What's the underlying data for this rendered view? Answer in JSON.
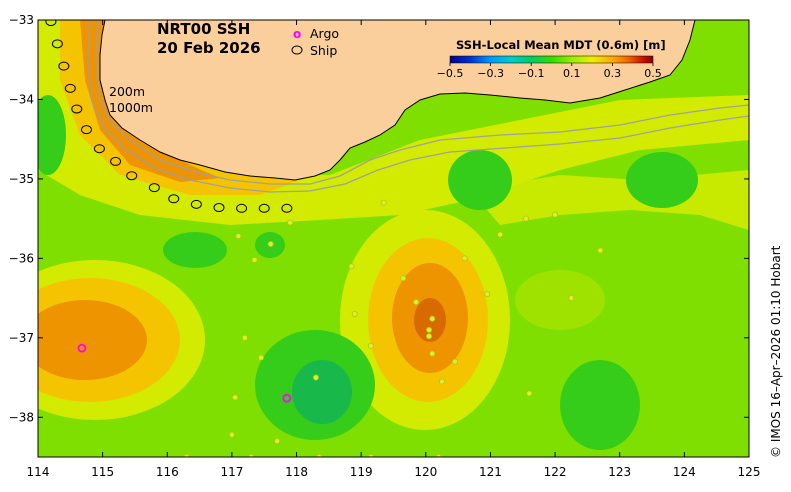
{
  "title": {
    "line1": "NRT00 SSH",
    "line2": "20 Feb 2026"
  },
  "legend": {
    "argo_symbol": "o",
    "argo_label": "Argo",
    "ship_label": "Ship",
    "argo_color": "#ff00ff",
    "ship_color": "#000000"
  },
  "isobaths": {
    "label_200": "200m",
    "label_1000": "1000m"
  },
  "colorbar": {
    "title": "SSH-Local Mean MDT (0.6m) [m]",
    "ticks": [
      "−0.5",
      "−0.3",
      "−0.1",
      "0.1",
      "0.3",
      "0.5"
    ],
    "tick_values": [
      -0.5,
      -0.3,
      -0.1,
      0.1,
      0.3,
      0.5
    ],
    "range": [
      -0.5,
      0.5
    ],
    "colors": [
      "#00008b",
      "#0033cc",
      "#0099ff",
      "#00cccc",
      "#00cc66",
      "#33dd00",
      "#99ee00",
      "#eeee00",
      "#ffaa00",
      "#ee6600",
      "#cc1100",
      "#880000"
    ]
  },
  "axes": {
    "x_ticks": [
      "114",
      "115",
      "116",
      "117",
      "118",
      "119",
      "120",
      "121",
      "122",
      "123",
      "124",
      "125"
    ],
    "x_values": [
      114,
      115,
      116,
      117,
      118,
      119,
      120,
      121,
      122,
      123,
      124,
      125
    ],
    "y_ticks": [
      "−33",
      "−34",
      "−35",
      "−36",
      "−37",
      "−38"
    ],
    "y_values": [
      -33,
      -34,
      -35,
      -36,
      -37,
      -38
    ],
    "lon_range": [
      114,
      125
    ],
    "lat_range": [
      -38.5,
      -33
    ]
  },
  "credit": "© IMOS 16–Apr–2026 01:10 Hobart",
  "colors": {
    "land": "#fbcf9c",
    "background_field": "#7fe000",
    "ridge": "#d3eb00",
    "high": "#f5c400",
    "high_strong": "#ed9400",
    "high_core": "#d86a00",
    "low": "#36cc1a",
    "low_strong": "#18b84a",
    "isobath": "#a0a0a0",
    "coast": "#000000"
  },
  "ship_track": [
    [
      114.2,
      -33.02
    ],
    [
      114.3,
      -33.3
    ],
    [
      114.4,
      -33.58
    ],
    [
      114.5,
      -33.86
    ],
    [
      114.6,
      -34.12
    ],
    [
      114.75,
      -34.38
    ],
    [
      114.95,
      -34.62
    ],
    [
      115.2,
      -34.78
    ],
    [
      115.45,
      -34.96
    ],
    [
      115.8,
      -35.11
    ],
    [
      116.1,
      -35.25
    ],
    [
      116.45,
      -35.32
    ],
    [
      116.8,
      -35.36
    ],
    [
      117.15,
      -35.37
    ],
    [
      117.5,
      -35.37
    ],
    [
      117.85,
      -35.37
    ]
  ],
  "argo_floats": [
    [
      114.68,
      -37.13
    ],
    [
      117.85,
      -37.76
    ]
  ],
  "drifters": [
    [
      117.1,
      -35.72
    ],
    [
      117.35,
      -36.02
    ],
    [
      117.6,
      -35.82
    ],
    [
      117.9,
      -35.55
    ],
    [
      117.2,
      -37.0
    ],
    [
      117.45,
      -37.25
    ],
    [
      117.05,
      -37.75
    ],
    [
      118.3,
      -37.5
    ],
    [
      117.7,
      -38.3
    ],
    [
      118.9,
      -36.7
    ],
    [
      119.15,
      -37.1
    ],
    [
      119.65,
      -36.25
    ],
    [
      119.85,
      -36.55
    ],
    [
      120.05,
      -36.9
    ],
    [
      120.1,
      -37.2
    ],
    [
      120.25,
      -37.55
    ],
    [
      120.45,
      -37.3
    ],
    [
      120.95,
      -36.45
    ],
    [
      121.15,
      -35.7
    ],
    [
      121.55,
      -35.5
    ],
    [
      122.0,
      -35.45
    ],
    [
      122.25,
      -36.5
    ],
    [
      122.7,
      -35.9
    ],
    [
      120.6,
      -36.0
    ],
    [
      121.6,
      -37.7
    ],
    [
      116.3,
      -38.5
    ],
    [
      117.3,
      -38.5
    ],
    [
      118.35,
      -38.5
    ],
    [
      119.15,
      -38.5
    ],
    [
      120.2,
      -38.5
    ],
    [
      117.0,
      -38.22
    ],
    [
      119.35,
      -35.3
    ],
    [
      120.1,
      -36.76
    ],
    [
      120.05,
      -36.98
    ],
    [
      118.85,
      -36.1
    ]
  ]
}
